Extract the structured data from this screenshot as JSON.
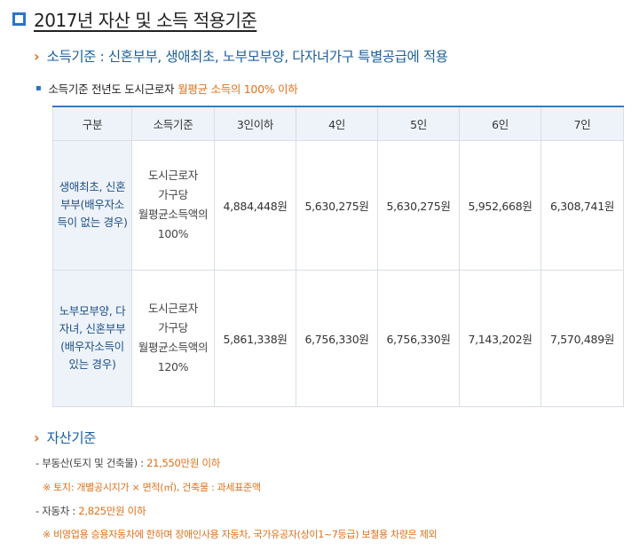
{
  "title": "2017년 자산 및 소득 적용기준",
  "income_section": {
    "heading": "소득기준 : 신혼부부, 생애최초, 노부모부양, 다자녀가구 특별공급에 적용",
    "note_prefix": "소득기준 전년도 도시근로자",
    "note_highlight": "월평균 소득의 100% 이하"
  },
  "table": {
    "headers": [
      "구분",
      "소득기준",
      "3인이하",
      "4인",
      "5인",
      "6인",
      "7인"
    ],
    "rows": [
      {
        "category": "생애최초, 신혼부부(배우자소득이 없는 경우)",
        "basis": [
          "도시근로자",
          "가구당",
          "월평균소득액의",
          "100%"
        ],
        "values": [
          "4,884,448원",
          "5,630,275원",
          "5,630,275원",
          "5,952,668원",
          "6,308,741원"
        ]
      },
      {
        "category": "노부모부양, 다자녀, 신혼부부(배우자소득이 있는 경우)",
        "basis": [
          "도시근로자",
          "가구당",
          "월평균소득액의",
          "120%"
        ],
        "values": [
          "5,861,338원",
          "6,756,330원",
          "6,756,330원",
          "7,143,202원",
          "7,570,489원"
        ]
      }
    ]
  },
  "asset_section": {
    "heading": "자산기준",
    "items": [
      {
        "label": "- 부동산(토지 및 건축물) : ",
        "value": "21,550만원 이하",
        "note": "※ 토지: 개별공시지가 × 면적(㎡), 건축물 : 과세표준액"
      },
      {
        "label": "- 자동차 : ",
        "value": "2,825만원 이하",
        "note": "※ 비영업용 승용자동차에 한하며 장애인사용 자동차, 국가유공자(상이1~7등급) 보철용 차량은 제외"
      }
    ]
  },
  "icons": {
    "title_marker": "square-outline-icon",
    "section_marker": "chevron-right-icon",
    "note_marker": "bullet-icon"
  },
  "colors": {
    "accent_blue": "#2a74c9",
    "heading_blue": "#1d5f9d",
    "highlight_orange": "#e0701a",
    "header_bg": "#eef3fa"
  }
}
